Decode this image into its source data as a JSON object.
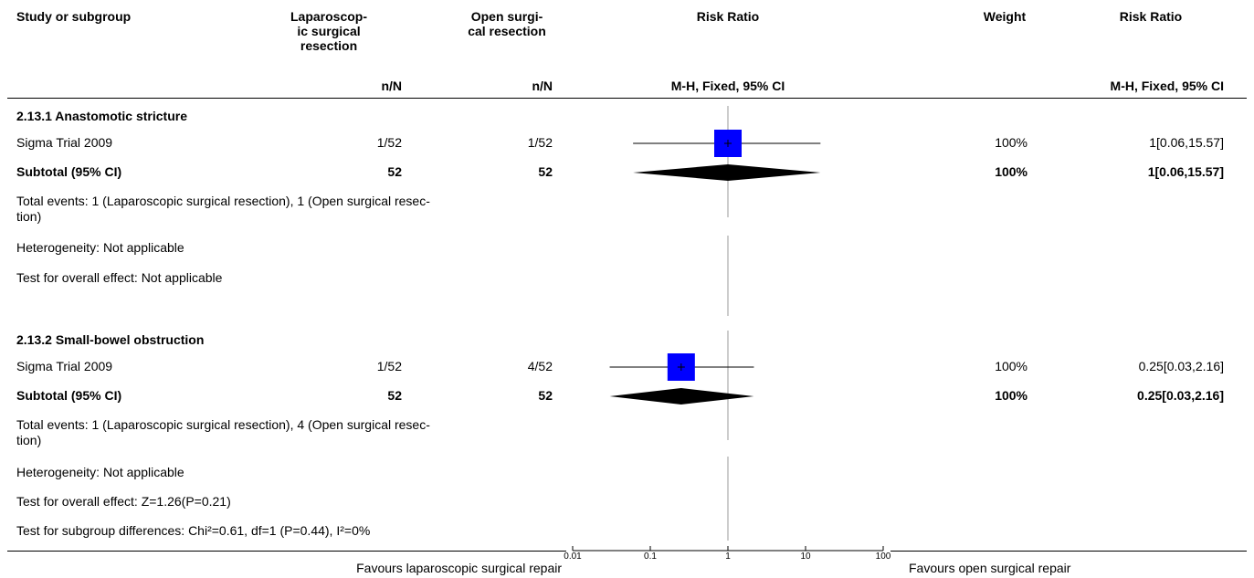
{
  "header": {
    "study": "Study or subgroup",
    "exp": "Laparoscop-ic surgical resection",
    "exp_lines": [
      "Laparoscop-",
      "ic surgical",
      "resection"
    ],
    "ctrl_lines": [
      "Open surgi-",
      "cal resection"
    ],
    "rr": "Risk Ratio",
    "weight": "Weight",
    "rr2": "Risk Ratio",
    "exp_sub": "n/N",
    "ctrl_sub": "n/N",
    "rr_sub": "M-H, Fixed, 95% CI",
    "rr2_sub": "M-H, Fixed, 95% CI"
  },
  "groups": [
    {
      "title": "2.13.1 Anastomotic stricture",
      "study": {
        "name": "Sigma Trial 2009",
        "exp": "1/52",
        "ctrl": "1/52",
        "weight": "100%",
        "ci_text": "1[0.06,15.57]"
      },
      "subtotal": {
        "label": "Subtotal (95% CI)",
        "exp": "52",
        "ctrl": "52",
        "weight": "100%",
        "ci_text": "1[0.06,15.57]"
      },
      "total_events": "Total events: 1 (Laparoscopic surgical resection), 1 (Open surgical resec-tion)",
      "total_events_lines": [
        "Total events: 1 (Laparoscopic surgical resection), 1 (Open surgical resec-",
        "tion)"
      ],
      "heterogeneity": "Heterogeneity: Not applicable",
      "overall": "Test for overall effect: Not applicable"
    },
    {
      "title": "2.13.2 Small-bowel obstruction",
      "study": {
        "name": "Sigma Trial 2009",
        "exp": "1/52",
        "ctrl": "4/52",
        "weight": "100%",
        "ci_text": "0.25[0.03,2.16]"
      },
      "subtotal": {
        "label": "Subtotal (95% CI)",
        "exp": "52",
        "ctrl": "52",
        "weight": "100%",
        "ci_text": "0.25[0.03,2.16]"
      },
      "total_events": "Total events: 1 (Laparoscopic surgical resection), 4 (Open surgical resec-tion)",
      "total_events_lines": [
        "Total events: 1 (Laparoscopic surgical resection), 4 (Open surgical resec-",
        "tion)"
      ],
      "heterogeneity": "Heterogeneity: Not applicable",
      "overall": "Test for overall effect: Z=1.26(P=0.21)"
    }
  ],
  "subgroup_test": "Test for subgroup differences: Chi²=0.61, df=1 (P=0.44), I²=0%",
  "footer": {
    "left": "Favours laparoscopic surgical repair",
    "right": "Favours open surgical repair"
  },
  "colors": {
    "square": "#0000ff",
    "line": "#000000",
    "diamond": "#000000",
    "null_line": "#999999"
  },
  "chart_data": {
    "type": "forest",
    "scale": "log",
    "xlim": [
      0.01,
      100
    ],
    "ticks": [
      0.01,
      0.1,
      1,
      10,
      100
    ],
    "tick_labels": [
      "0.01",
      "0.1",
      "1",
      "10",
      "100"
    ],
    "null_value": 1,
    "studies": [
      {
        "group": "2.13.1 Anastomotic stricture",
        "name": "Sigma Trial 2009",
        "rr": 1,
        "lo": 0.06,
        "hi": 15.57,
        "weight": 100
      },
      {
        "group": "2.13.2 Small-bowel obstruction",
        "name": "Sigma Trial 2009",
        "rr": 0.25,
        "lo": 0.03,
        "hi": 2.16,
        "weight": 100
      }
    ],
    "subtotals": [
      {
        "group": "2.13.1 Anastomotic stricture",
        "rr": 1,
        "lo": 0.06,
        "hi": 15.57
      },
      {
        "group": "2.13.2 Small-bowel obstruction",
        "rr": 0.25,
        "lo": 0.03,
        "hi": 2.16
      }
    ]
  }
}
